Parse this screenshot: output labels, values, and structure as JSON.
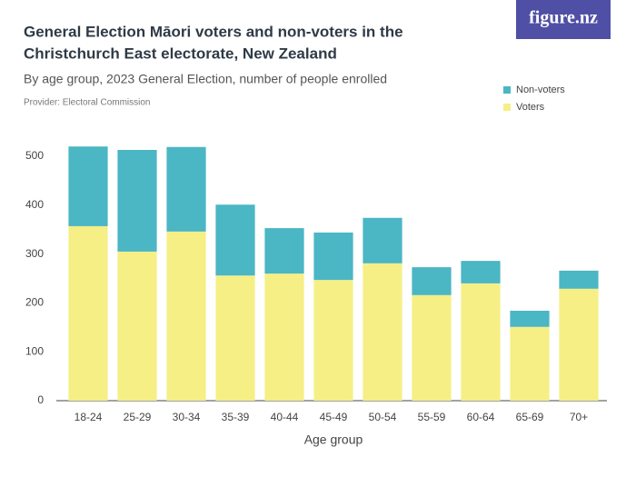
{
  "chart_data": {
    "type": "stacked-bar",
    "title_lines": [
      "General Election Māori voters and non-voters in the",
      "Christchurch East electorate, New Zealand"
    ],
    "subtitle": "By age group, 2023 General Election, number of people enrolled",
    "provider": "Provider: Electoral Commission",
    "logo": "figure.nz",
    "x_label": "Age group",
    "categories": [
      "18-24",
      "25-29",
      "30-34",
      "35-39",
      "40-44",
      "45-49",
      "50-54",
      "55-59",
      "60-64",
      "65-69",
      "70+"
    ],
    "series": [
      {
        "name": "Voters",
        "color": "#f5ef86",
        "values": [
          357,
          305,
          346,
          256,
          260,
          247,
          281,
          216,
          240,
          151,
          229
        ]
      },
      {
        "name": "Non-voters",
        "color": "#4bb6c4",
        "values": [
          163,
          208,
          173,
          145,
          93,
          97,
          93,
          57,
          46,
          33,
          37
        ]
      }
    ],
    "ylim": [
      0,
      500
    ],
    "yticks": [
      0,
      100,
      200,
      300,
      400,
      500
    ],
    "grid": false
  }
}
